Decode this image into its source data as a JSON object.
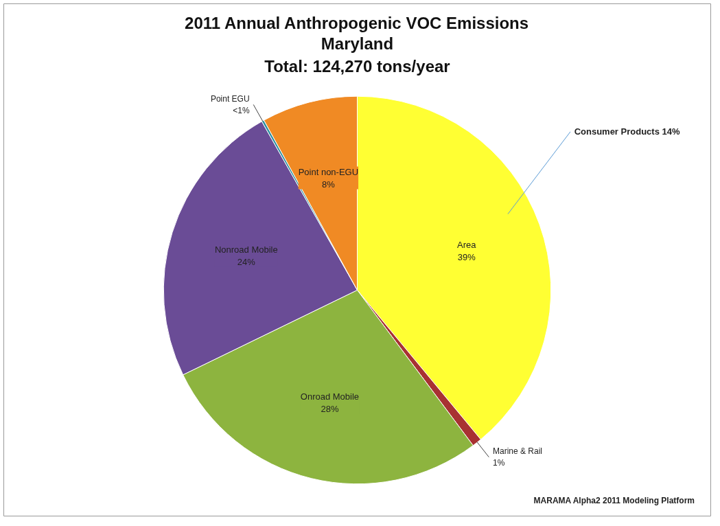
{
  "chart_data": {
    "type": "pie",
    "title": "2011 Annual Anthropogenic VOC Emissions",
    "subtitle": "Maryland\nTotal: 124,270 tons/year",
    "categories": [
      "Area",
      "Marine & Rail",
      "Onroad Mobile",
      "Nonroad Mobile",
      "Point EGU",
      "Point non-EGU"
    ],
    "values": [
      39,
      0.8,
      28,
      24,
      0.2,
      8
    ],
    "value_labels": [
      "39%",
      "1%",
      "28%",
      "24%",
      "<1%",
      "8%"
    ],
    "colors": [
      "#ffff33",
      "#a83232",
      "#8db43f",
      "#6a4c96",
      "#2e8fa0",
      "#f08a24"
    ],
    "annotations": [
      {
        "text": "Consumer Products 14%",
        "x": "Area"
      },
      "MARAMA Alpha2 2011 Modeling Platform"
    ]
  }
}
